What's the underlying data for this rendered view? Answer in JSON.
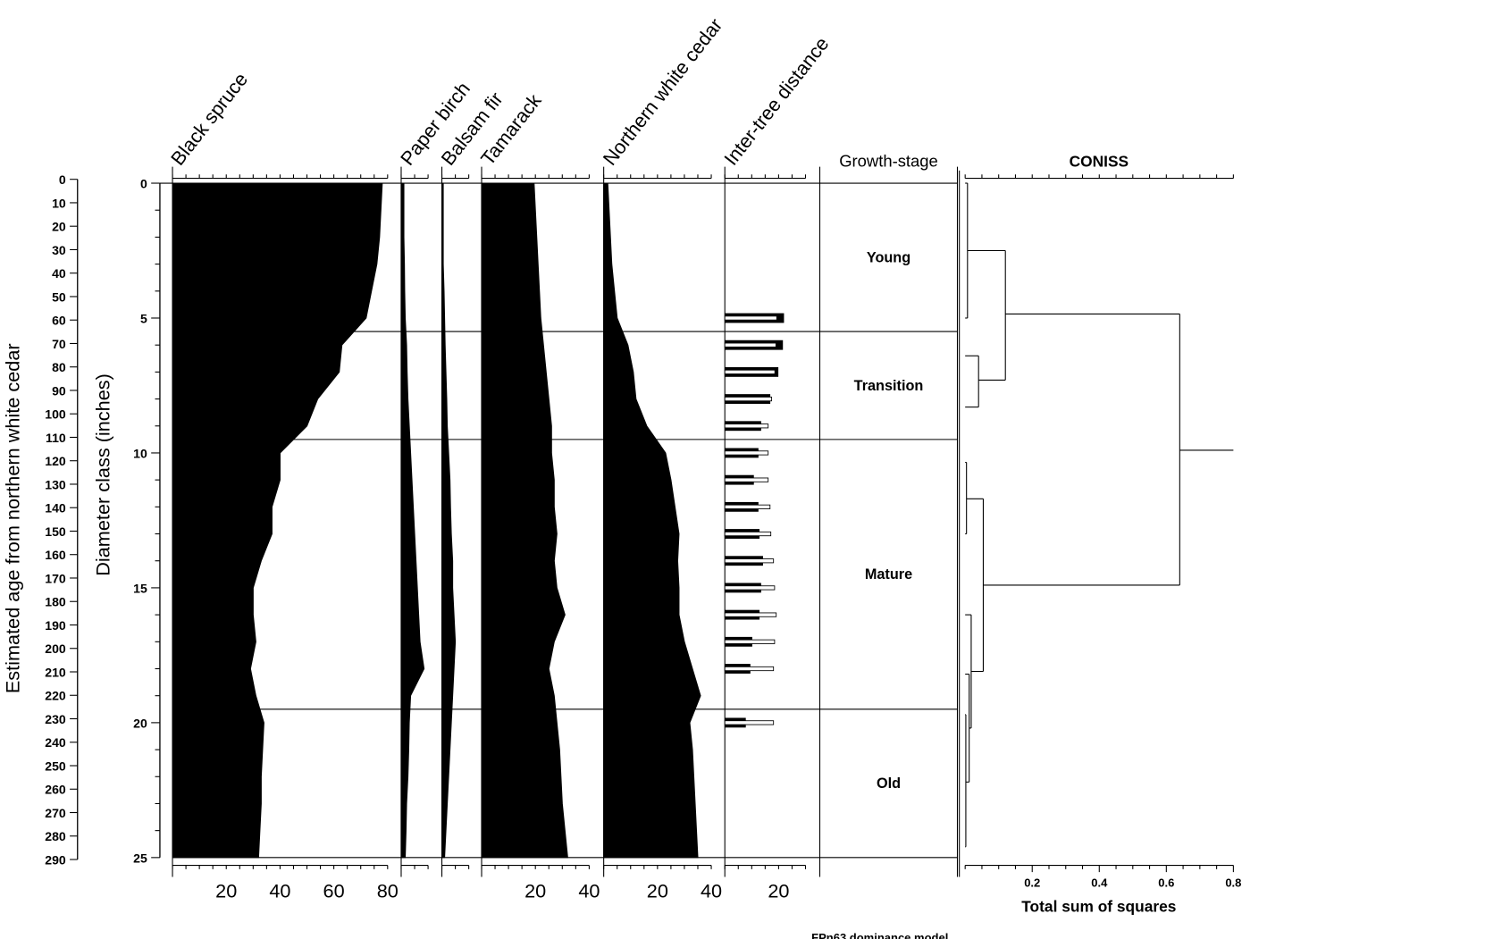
{
  "chart_data": {
    "type": "area",
    "footer": "FPn63 dominance model",
    "y_axes": {
      "age": {
        "label": "Estimated age from northern white cedar",
        "range": [
          0,
          290
        ],
        "ticks": [
          "0",
          "10",
          "20",
          "30",
          "40",
          "50",
          "60",
          "70",
          "80",
          "90",
          "100",
          "110",
          "120",
          "130",
          "140",
          "150",
          "160",
          "170",
          "180",
          "190",
          "200",
          "210",
          "220",
          "230",
          "240",
          "250",
          "260",
          "270",
          "280",
          "290"
        ]
      },
      "diameter": {
        "label": "Diameter class (inches)",
        "range": [
          0,
          25
        ],
        "ticks": [
          "0",
          "5",
          "10",
          "15",
          "20",
          "25"
        ]
      }
    },
    "diameter": [
      0,
      1,
      2,
      3,
      4,
      5,
      6,
      7,
      8,
      9,
      10,
      11,
      12,
      13,
      14,
      15,
      16,
      17,
      18,
      19,
      20,
      21,
      22,
      23,
      24,
      25
    ],
    "series": [
      {
        "name": "Black spruce",
        "max": 80,
        "tick_labels": [
          "20",
          "40",
          "60",
          "80"
        ],
        "tick_values": [
          20,
          40,
          60,
          80
        ],
        "values": [
          78,
          77.5,
          77,
          76,
          74,
          72,
          63,
          62,
          54,
          50,
          40,
          40,
          37,
          37,
          33,
          30,
          30,
          31,
          29,
          31,
          34,
          33.5,
          33,
          33,
          32.5,
          32
        ]
      },
      {
        "name": "Paper birch",
        "max": 10,
        "tick_labels": [],
        "tick_values": [],
        "values": [
          1,
          1,
          1,
          1.2,
          1.3,
          1.5,
          2,
          2.2,
          2.5,
          3,
          3.5,
          4,
          4.5,
          5,
          5.5,
          6,
          6.5,
          7,
          8.5,
          3.5,
          3,
          2.8,
          2.5,
          2,
          1.8,
          1.5
        ]
      },
      {
        "name": "Balsam fir",
        "max": 10,
        "tick_labels": [],
        "tick_values": [],
        "values": [
          0.5,
          0.5,
          0.5,
          0.5,
          0.8,
          1,
          1.2,
          1.5,
          1.8,
          2,
          2.5,
          3,
          3.2,
          3.5,
          4,
          4,
          4.5,
          5,
          4.5,
          4,
          3.5,
          3,
          2.5,
          2,
          1.5,
          1
        ]
      },
      {
        "name": "Tamarack",
        "max": 40,
        "tick_labels": [
          "20",
          "40"
        ],
        "tick_values": [
          20,
          40
        ],
        "values": [
          19.5,
          20,
          20.5,
          21,
          21.5,
          22,
          23,
          24,
          25,
          26,
          26,
          27,
          27,
          28,
          27,
          28,
          31,
          27,
          25,
          27,
          28,
          29,
          29.5,
          30,
          31,
          32
        ]
      },
      {
        "name": "Northern white cedar",
        "max": 40,
        "tick_labels": [
          "20",
          "40"
        ],
        "tick_values": [
          20,
          40
        ],
        "values": [
          1.5,
          2,
          2.5,
          3,
          4,
          5,
          9,
          11,
          12,
          16,
          23,
          25,
          26.5,
          28,
          27.5,
          28,
          28,
          30,
          33,
          36,
          32,
          33,
          33.5,
          34,
          34.5,
          35
        ]
      }
    ],
    "inter_tree_distance": {
      "name": "Inter-tree distance",
      "max": 30,
      "tick_labels": [
        "20"
      ],
      "tick_values": [
        20
      ],
      "diameter": [
        5,
        6,
        7,
        8,
        9,
        10,
        11,
        12,
        13,
        14,
        15,
        16,
        17,
        18,
        20
      ],
      "black_bar": [
        22.0,
        21.6,
        19.9,
        16.9,
        13.5,
        12.5,
        10.8,
        12.5,
        12.9,
        14.2,
        13.5,
        12.9,
        10.2,
        9.5,
        7.8
      ],
      "white_bar": [
        19.3,
        19.0,
        18.6,
        17.4,
        16.1,
        16.1,
        16.1,
        16.8,
        17.1,
        18.1,
        18.5,
        19.1,
        18.5,
        18.1,
        18.1
      ]
    },
    "growth_stage": {
      "title": "Growth-stage",
      "zone_boundaries": [
        5.5,
        9.5,
        19.5
      ],
      "zones": [
        {
          "label": "Young",
          "from": 0,
          "to": 5.5
        },
        {
          "label": "Transition",
          "from": 5.5,
          "to": 9.5
        },
        {
          "label": "Mature",
          "from": 9.5,
          "to": 19.5
        },
        {
          "label": "Old",
          "from": 19.5,
          "to": 25
        }
      ]
    },
    "coniss": {
      "title": "CONISS",
      "xlabel": "Total sum of squares",
      "xlim": [
        0,
        0.8
      ],
      "tick_labels": [
        "0.2",
        "0.4",
        "0.6",
        "0.8"
      ],
      "tick_values": [
        0.2,
        0.4,
        0.6,
        0.8
      ],
      "clusters": [
        {
          "top": 0,
          "bottom": 5,
          "height": 0.007,
          "top_child": 0,
          "bottom_child": 0
        },
        {
          "top": 6.4,
          "bottom": 8.3,
          "height": 0.04,
          "top_child": 0,
          "bottom_child": 0
        },
        {
          "top": 2.5,
          "bottom": 7.3,
          "height": 0.12,
          "top_child": 0.007,
          "bottom_child": 0.04
        },
        {
          "top": 10.35,
          "bottom": 13.0,
          "height": 0.004,
          "top_child": 0,
          "bottom_child": 0
        },
        {
          "top": 19.7,
          "bottom": 24.6,
          "height": 0.002,
          "top_child": 0,
          "bottom_child": 0
        },
        {
          "top": 18.2,
          "bottom": 22.2,
          "height": 0.012,
          "top_child": 0,
          "bottom_child": 0.002
        },
        {
          "top": 16.0,
          "bottom": 20.2,
          "height": 0.018,
          "top_child": 0,
          "bottom_child": 0.012
        },
        {
          "top": 11.7,
          "bottom": 18.1,
          "height": 0.054,
          "top_child": 0.004,
          "bottom_child": 0.018
        },
        {
          "top": 4.85,
          "bottom": 14.9,
          "height": 0.64,
          "top_child": 0.12,
          "bottom_child": 0.054
        }
      ],
      "root": {
        "diameter": 9.9,
        "from": 0.64,
        "to": 0.8
      }
    }
  }
}
